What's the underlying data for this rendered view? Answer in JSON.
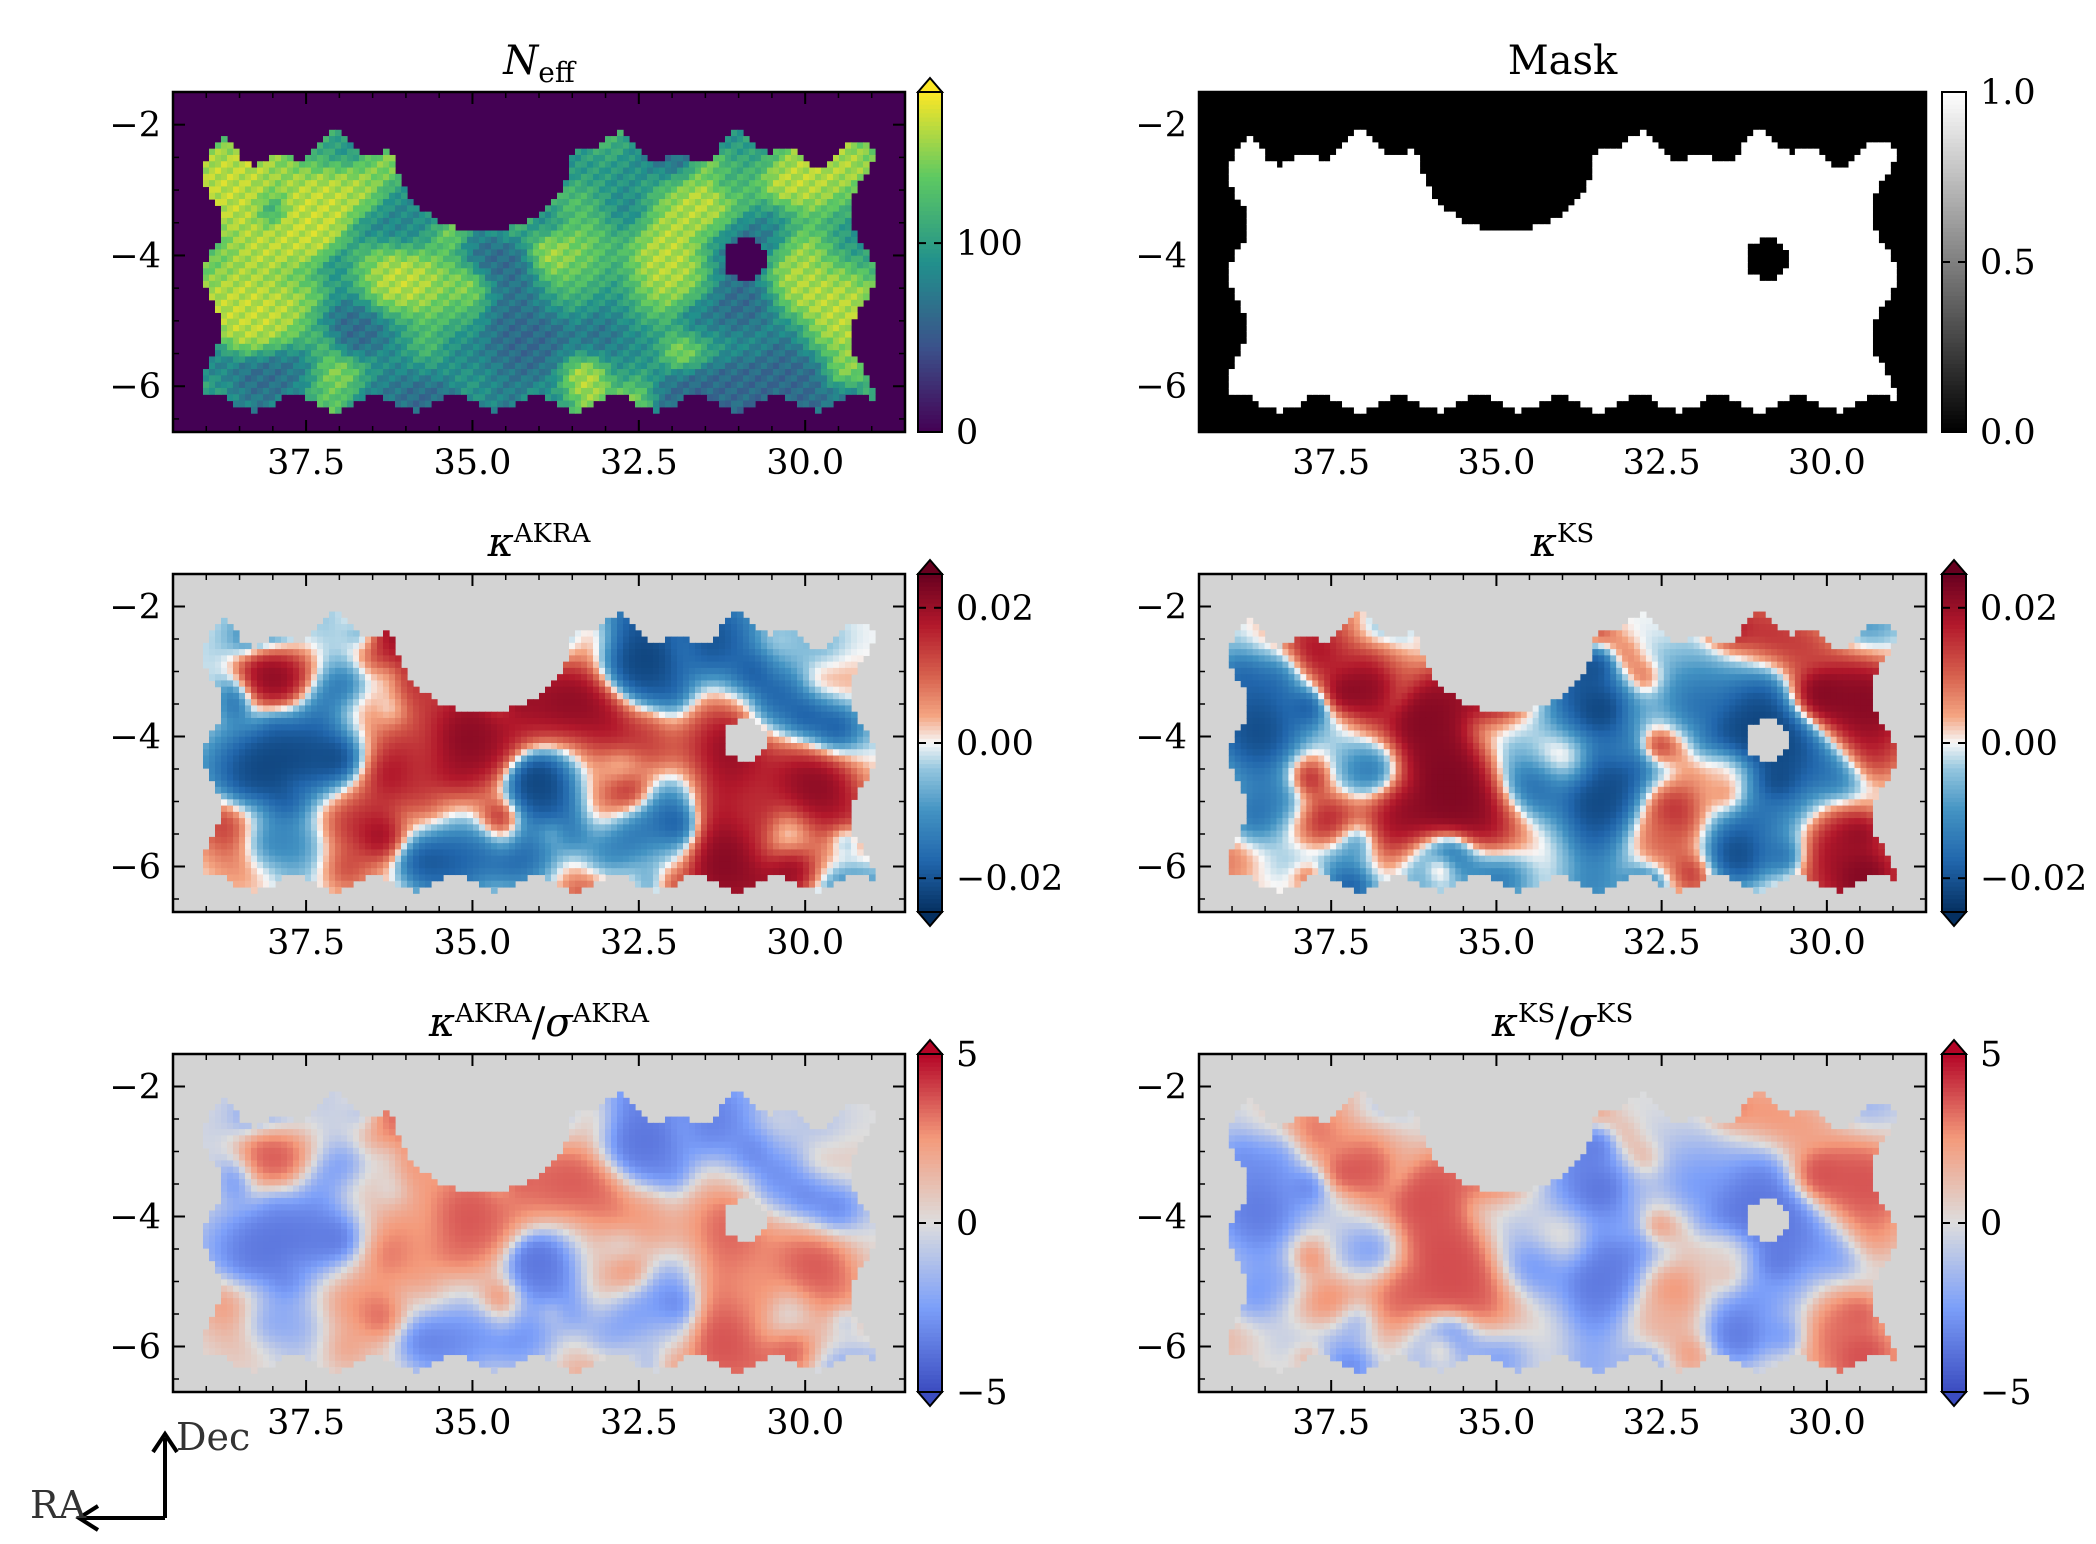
{
  "figure": {
    "compass": {
      "ra_label": "RA",
      "dec_label": "Dec"
    }
  },
  "colors": {
    "masked_gray": "#d3d3d3",
    "frame": "#000000"
  },
  "chart_data": [
    {
      "type": "heatmap",
      "title": "N_eff",
      "title_main": "N",
      "title_sub": "eff",
      "colormap": "viridis",
      "colorbar_extend": "max",
      "xlim": [
        39.5,
        28.5
      ],
      "ylim": [
        -6.7,
        -1.5
      ],
      "xticks": [
        37.5,
        35.0,
        32.5,
        30.0
      ],
      "xtick_labels": [
        "37.5",
        "35.0",
        "32.5",
        "30.0"
      ],
      "yticks": [
        -2,
        -4,
        -6
      ],
      "ytick_labels": [
        "−2",
        "−4",
        "−6"
      ],
      "clim": [
        0,
        180
      ],
      "colorbar_ticks": [
        0,
        100
      ],
      "colorbar_labels": [
        "0",
        "100"
      ]
    },
    {
      "type": "heatmap",
      "title": "Mask",
      "colormap": "gray",
      "colorbar_extend": "neither",
      "xlim": [
        39.5,
        28.5
      ],
      "ylim": [
        -6.7,
        -1.5
      ],
      "xticks": [
        37.5,
        35.0,
        32.5,
        30.0
      ],
      "xtick_labels": [
        "37.5",
        "35.0",
        "32.5",
        "30.0"
      ],
      "yticks": [
        -2,
        -4,
        -6
      ],
      "ytick_labels": [
        "−2",
        "−4",
        "−6"
      ],
      "clim": [
        0,
        1
      ],
      "colorbar_ticks": [
        0.0,
        0.5,
        1.0
      ],
      "colorbar_labels": [
        "0.0",
        "0.5",
        "1.0"
      ]
    },
    {
      "type": "heatmap",
      "title": "κ^AKRA",
      "title_main": "κ",
      "title_sup": "AKRA",
      "colormap": "RdBu_r",
      "colorbar_extend": "both",
      "xlim": [
        39.5,
        28.5
      ],
      "ylim": [
        -6.7,
        -1.5
      ],
      "xticks": [
        37.5,
        35.0,
        32.5,
        30.0
      ],
      "xtick_labels": [
        "37.5",
        "35.0",
        "32.5",
        "30.0"
      ],
      "yticks": [
        -2,
        -4,
        -6
      ],
      "ytick_labels": [
        "−2",
        "−4",
        "−6"
      ],
      "clim": [
        -0.025,
        0.025
      ],
      "colorbar_ticks": [
        -0.02,
        0.0,
        0.02
      ],
      "colorbar_labels": [
        "−0.02",
        "0.00",
        "0.02"
      ]
    },
    {
      "type": "heatmap",
      "title": "κ^KS",
      "title_main": "κ",
      "title_sup": "KS",
      "colormap": "RdBu_r",
      "colorbar_extend": "both",
      "xlim": [
        39.5,
        28.5
      ],
      "ylim": [
        -6.7,
        -1.5
      ],
      "xticks": [
        37.5,
        35.0,
        32.5,
        30.0
      ],
      "xtick_labels": [
        "37.5",
        "35.0",
        "32.5",
        "30.0"
      ],
      "yticks": [
        -2,
        -4,
        -6
      ],
      "ytick_labels": [
        "−2",
        "−4",
        "−6"
      ],
      "clim": [
        -0.025,
        0.025
      ],
      "colorbar_ticks": [
        -0.02,
        0.0,
        0.02
      ],
      "colorbar_labels": [
        "−0.02",
        "0.00",
        "0.02"
      ]
    },
    {
      "type": "heatmap",
      "title": "κ^AKRA/σ^AKRA",
      "title_main": "κ",
      "title_sup": "AKRA",
      "title_main2": "σ",
      "title_sup2": "AKRA",
      "colormap": "coolwarm",
      "colorbar_extend": "both",
      "xlim": [
        39.5,
        28.5
      ],
      "ylim": [
        -6.7,
        -1.5
      ],
      "xticks": [
        37.5,
        35.0,
        32.5,
        30.0
      ],
      "xtick_labels": [
        "37.5",
        "35.0",
        "32.5",
        "30.0"
      ],
      "yticks": [
        -2,
        -4,
        -6
      ],
      "ytick_labels": [
        "−2",
        "−4",
        "−6"
      ],
      "clim": [
        -5,
        5
      ],
      "colorbar_ticks": [
        -5,
        0,
        5
      ],
      "colorbar_labels": [
        "−5",
        "0",
        "5"
      ]
    },
    {
      "type": "heatmap",
      "title": "κ^KS/σ^KS",
      "title_main": "κ",
      "title_sup": "KS",
      "title_main2": "σ",
      "title_sup2": "KS",
      "colormap": "coolwarm",
      "colorbar_extend": "both",
      "xlim": [
        39.5,
        28.5
      ],
      "ylim": [
        -6.7,
        -1.5
      ],
      "xticks": [
        37.5,
        35.0,
        32.5,
        30.0
      ],
      "xtick_labels": [
        "37.5",
        "35.0",
        "32.5",
        "30.0"
      ],
      "yticks": [
        -2,
        -4,
        -6
      ],
      "ytick_labels": [
        "−2",
        "−4",
        "−6"
      ],
      "clim": [
        -5,
        5
      ],
      "colorbar_ticks": [
        -5,
        0,
        5
      ],
      "colorbar_labels": [
        "−5",
        "0",
        "5"
      ]
    }
  ]
}
